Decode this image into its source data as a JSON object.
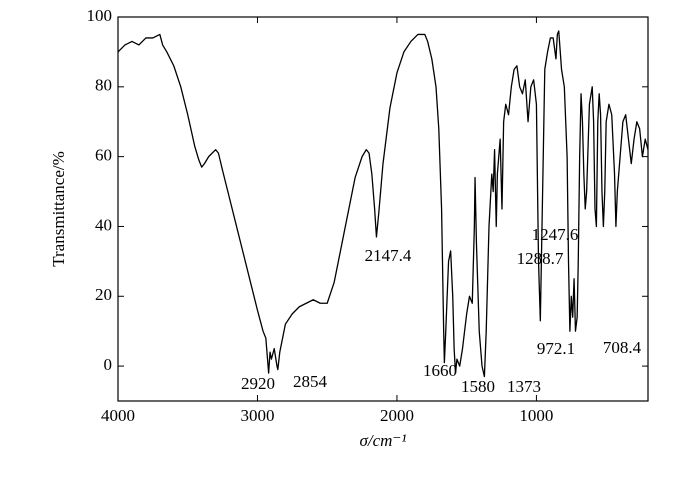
{
  "chart_data": {
    "type": "line",
    "x_label": "σ/cm⁻¹",
    "y_label": "Transmittance/%",
    "color": "#000000",
    "xlim": [
      4000,
      200
    ],
    "ylim": [
      -10,
      100
    ],
    "xticks": [
      4000,
      3000,
      2000,
      1000
    ],
    "yticks": [
      0,
      20,
      40,
      60,
      80,
      100
    ],
    "annotations": [
      "2920",
      "2854",
      "2147.4",
      "1660",
      "1580",
      "1373",
      "1288.7",
      "1247.6",
      "972.1",
      "708.4"
    ],
    "x": [
      4000,
      3950,
      3900,
      3850,
      3800,
      3750,
      3700,
      3680,
      3650,
      3600,
      3550,
      3500,
      3450,
      3420,
      3400,
      3380,
      3350,
      3300,
      3280,
      3250,
      3200,
      3150,
      3100,
      3050,
      3000,
      2980,
      2960,
      2940,
      2930,
      2920,
      2910,
      2900,
      2880,
      2860,
      2854,
      2840,
      2800,
      2750,
      2700,
      2650,
      2600,
      2550,
      2500,
      2450,
      2400,
      2350,
      2300,
      2250,
      2220,
      2200,
      2180,
      2160,
      2147,
      2130,
      2100,
      2050,
      2000,
      1950,
      1900,
      1850,
      1800,
      1780,
      1750,
      1720,
      1700,
      1680,
      1665,
      1660,
      1650,
      1630,
      1615,
      1600,
      1590,
      1580,
      1570,
      1550,
      1530,
      1500,
      1480,
      1460,
      1445,
      1440,
      1430,
      1410,
      1400,
      1390,
      1373,
      1360,
      1340,
      1320,
      1310,
      1300,
      1288,
      1280,
      1260,
      1247,
      1235,
      1220,
      1200,
      1180,
      1160,
      1140,
      1120,
      1100,
      1080,
      1060,
      1040,
      1020,
      1000,
      985,
      972,
      960,
      940,
      920,
      900,
      880,
      860,
      850,
      840,
      820,
      800,
      780,
      770,
      760,
      750,
      740,
      730,
      720,
      708,
      700,
      690,
      680,
      670,
      660,
      650,
      640,
      620,
      600,
      590,
      580,
      570,
      560,
      550,
      540,
      530,
      520,
      510,
      500,
      480,
      460,
      440,
      430,
      420,
      400,
      380,
      360,
      340,
      320,
      300,
      280,
      260,
      240,
      220,
      200
    ],
    "values": [
      90,
      92,
      93,
      92,
      94,
      94,
      95,
      92,
      90,
      86,
      80,
      72,
      63,
      59,
      57,
      58,
      60,
      62,
      61,
      56,
      48,
      40,
      32,
      24,
      16,
      13,
      10,
      8,
      3,
      -2,
      4,
      2,
      5,
      0,
      -1,
      4,
      12,
      15,
      17,
      18,
      19,
      18,
      18,
      24,
      34,
      44,
      54,
      60,
      62,
      61,
      55,
      45,
      37,
      44,
      58,
      74,
      84,
      90,
      93,
      95,
      95,
      93,
      88,
      80,
      68,
      45,
      10,
      1,
      10,
      30,
      33,
      20,
      5,
      -2,
      2,
      0,
      5,
      15,
      20,
      18,
      40,
      54,
      35,
      10,
      5,
      0,
      -3,
      10,
      40,
      55,
      50,
      62,
      40,
      55,
      65,
      45,
      70,
      75,
      72,
      80,
      85,
      86,
      80,
      78,
      82,
      70,
      80,
      82,
      75,
      30,
      13,
      40,
      85,
      90,
      94,
      94,
      88,
      95,
      96,
      85,
      80,
      60,
      30,
      10,
      20,
      14,
      25,
      10,
      14,
      30,
      60,
      78,
      70,
      55,
      45,
      50,
      75,
      80,
      70,
      45,
      40,
      70,
      78,
      72,
      50,
      40,
      50,
      70,
      75,
      72,
      55,
      40,
      50,
      60,
      70,
      72,
      65,
      58,
      65,
      70,
      68,
      60,
      65,
      62
    ]
  }
}
